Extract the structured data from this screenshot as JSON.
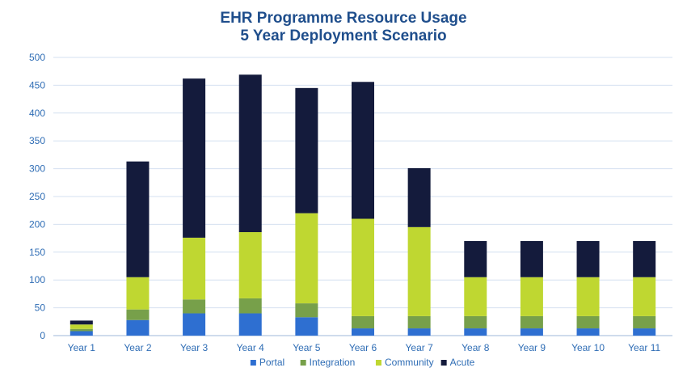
{
  "chart_data": {
    "type": "bar",
    "stacked": true,
    "title": "EHR Programme Resource Usage",
    "subtitle": "5 Year Deployment Scenario",
    "xlabel": "",
    "ylabel": "",
    "ylim": [
      0,
      500
    ],
    "yticks": [
      0,
      50,
      100,
      150,
      200,
      250,
      300,
      350,
      400,
      450,
      500
    ],
    "grid": true,
    "legend_position": "bottom",
    "categories": [
      "Year 1",
      "Year 2",
      "Year 3",
      "Year 4",
      "Year 5",
      "Year 6",
      "Year 7",
      "Year 8",
      "Year 9",
      "Year 10",
      "Year 11"
    ],
    "series": [
      {
        "name": "Portal",
        "color": "#2e6fd1",
        "values": [
          8,
          28,
          40,
          40,
          33,
          13,
          13,
          13,
          13,
          13,
          13
        ]
      },
      {
        "name": "Integration",
        "color": "#77a04a",
        "values": [
          4,
          19,
          25,
          27,
          25,
          22,
          22,
          22,
          22,
          22,
          22
        ]
      },
      {
        "name": "Community",
        "color": "#bfd731",
        "values": [
          8,
          58,
          111,
          119,
          162,
          175,
          160,
          70,
          70,
          70,
          70
        ]
      },
      {
        "name": "Acute",
        "color": "#141b3c",
        "values": [
          7,
          208,
          286,
          283,
          225,
          246,
          106,
          65,
          65,
          65,
          65
        ]
      }
    ]
  }
}
